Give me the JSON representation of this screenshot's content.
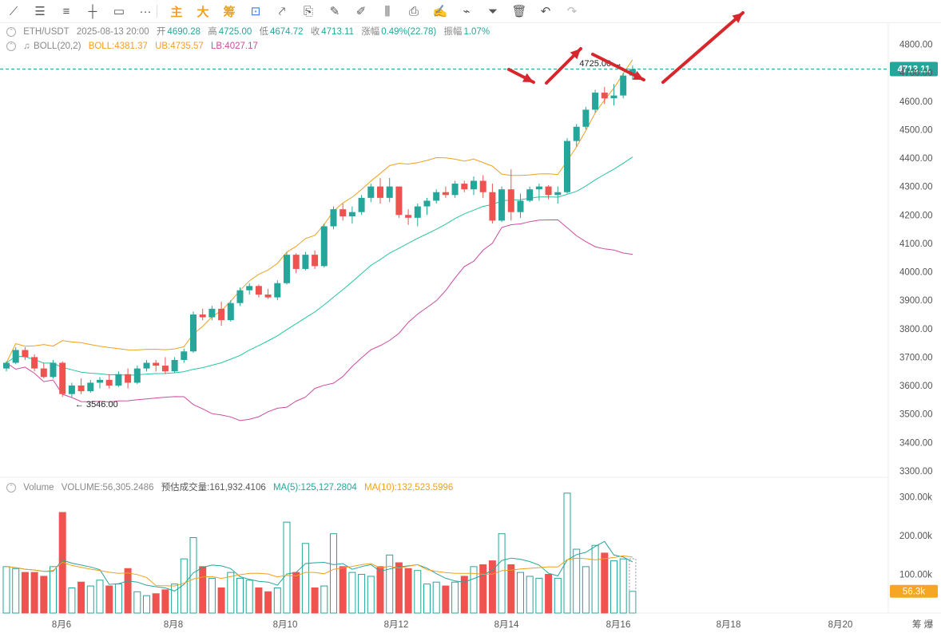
{
  "toolbar": {
    "items": [
      {
        "name": "trend-line-icon",
        "glyph": "⟋"
      },
      {
        "name": "horizontal-lines-icon",
        "glyph": "☰"
      },
      {
        "name": "parallel-lines-icon",
        "glyph": "≡"
      },
      {
        "name": "cross-line-icon",
        "glyph": "┼"
      },
      {
        "name": "rectangle-icon",
        "glyph": "▭"
      },
      {
        "name": "more-icon",
        "glyph": "···"
      }
    ],
    "cn_labels": [
      "主",
      "大",
      "筹"
    ],
    "tools": [
      {
        "name": "measure-icon",
        "glyph": "⊡"
      },
      {
        "name": "draw-path-icon",
        "glyph": "⤤"
      },
      {
        "name": "bookmark-icon",
        "glyph": "⎘"
      },
      {
        "name": "ruler-icon",
        "glyph": "✎"
      },
      {
        "name": "pen-icon",
        "glyph": "✐"
      },
      {
        "name": "candles-icon",
        "glyph": "⫼"
      },
      {
        "name": "clipboard-icon",
        "glyph": "⎙"
      },
      {
        "name": "note-icon",
        "glyph": "✍"
      },
      {
        "name": "magnet-icon",
        "glyph": "⌁"
      },
      {
        "name": "filter-icon",
        "glyph": "⏷"
      },
      {
        "name": "trash-icon",
        "glyph": "🗑"
      },
      {
        "name": "undo-icon",
        "glyph": "↶"
      },
      {
        "name": "redo-icon",
        "glyph": "↷"
      }
    ]
  },
  "info": {
    "symbol": "ETH/USDT",
    "datetime": "2025-08-13 20:00",
    "open_label": "开",
    "open": "4690.28",
    "high_label": "高",
    "high": "4725.00",
    "low_label": "低",
    "low": "4674.72",
    "close_label": "收",
    "close": "4713.11",
    "change_label": "涨幅",
    "change": "0.49%(22.78)",
    "amp_label": "振幅",
    "amp": "1.07%"
  },
  "boll": {
    "label": "BOLL(20,2)",
    "mid_label": "BOLL:",
    "mid": "4381.37",
    "ub_label": "UB:",
    "ub": "4735.57",
    "lb_label": "LB:",
    "lb": "4027.17"
  },
  "volume": {
    "label": "Volume",
    "vol_label": "VOLUME:",
    "vol": "56,305.2486",
    "est_label": "预估成交量:",
    "est": "161,932.4106",
    "ma5_label": "MA(5):",
    "ma5": "125,127.2804",
    "ma10_label": "MA(10):",
    "ma10": "132,523.5996"
  },
  "colors": {
    "up": "#26a69a",
    "down": "#ef5350",
    "ub": "#f0a020",
    "mid": "#26c6a0",
    "lb": "#d04aa0",
    "annot": "#d9262c"
  },
  "chart_data": {
    "type": "candlestick",
    "price_ticks": [
      "4800.00",
      "4700.00",
      "4600.00",
      "4500.00",
      "4400.00",
      "4300.00",
      "4200.00",
      "4100.00",
      "4000.00",
      "3900.00",
      "3800.00",
      "3700.00",
      "3600.00",
      "3500.00",
      "3400.00",
      "3300.00"
    ],
    "volume_ticks": [
      "300.00k",
      "200.00k",
      "100.00k"
    ],
    "x_ticks": [
      "8月6",
      "8月8",
      "8月10",
      "8月12",
      "8月14",
      "8月16",
      "8月18",
      "8月20"
    ],
    "current_price": "4713.11",
    "current_volume": "56.3k",
    "high_marker": "4725.00 →",
    "low_marker": "← 3546.00",
    "axis_corner": "筹 爆",
    "candles": [
      [
        3660,
        3685,
        3650,
        3680,
        120
      ],
      [
        3680,
        3735,
        3675,
        3725,
        115
      ],
      [
        3725,
        3735,
        3690,
        3700,
        105
      ],
      [
        3700,
        3710,
        3650,
        3660,
        105
      ],
      [
        3660,
        3680,
        3625,
        3630,
        95
      ],
      [
        3630,
        3690,
        3625,
        3680,
        120
      ],
      [
        3680,
        3685,
        3560,
        3570,
        260
      ],
      [
        3570,
        3610,
        3560,
        3600,
        65
      ],
      [
        3600,
        3625,
        3570,
        3580,
        80
      ],
      [
        3580,
        3620,
        3575,
        3610,
        70
      ],
      [
        3610,
        3630,
        3590,
        3620,
        85
      ],
      [
        3620,
        3640,
        3590,
        3600,
        70
      ],
      [
        3600,
        3650,
        3595,
        3640,
        75
      ],
      [
        3640,
        3660,
        3590,
        3610,
        115
      ],
      [
        3610,
        3670,
        3605,
        3660,
        55
      ],
      [
        3660,
        3690,
        3650,
        3680,
        45
      ],
      [
        3680,
        3690,
        3650,
        3670,
        50
      ],
      [
        3670,
        3700,
        3640,
        3650,
        60
      ],
      [
        3650,
        3700,
        3645,
        3690,
        75
      ],
      [
        3690,
        3730,
        3680,
        3720,
        140
      ],
      [
        3720,
        3860,
        3715,
        3850,
        195
      ],
      [
        3850,
        3870,
        3830,
        3840,
        120
      ],
      [
        3840,
        3880,
        3830,
        3870,
        90
      ],
      [
        3870,
        3895,
        3810,
        3830,
        65
      ],
      [
        3830,
        3900,
        3825,
        3890,
        105
      ],
      [
        3890,
        3945,
        3880,
        3935,
        90
      ],
      [
        3935,
        3960,
        3920,
        3950,
        85
      ],
      [
        3950,
        3955,
        3910,
        3920,
        65
      ],
      [
        3920,
        3940,
        3905,
        3910,
        55
      ],
      [
        3910,
        3970,
        3900,
        3960,
        65
      ],
      [
        3960,
        4070,
        3955,
        4060,
        235
      ],
      [
        4060,
        4065,
        3995,
        4010,
        105
      ],
      [
        4010,
        4070,
        4005,
        4060,
        180
      ],
      [
        4060,
        4075,
        4010,
        4020,
        65
      ],
      [
        4020,
        4170,
        4015,
        4160,
        70
      ],
      [
        4160,
        4230,
        4150,
        4220,
        205
      ],
      [
        4220,
        4240,
        4180,
        4195,
        120
      ],
      [
        4195,
        4230,
        4170,
        4210,
        105
      ],
      [
        4210,
        4270,
        4200,
        4260,
        100
      ],
      [
        4260,
        4310,
        4245,
        4300,
        95
      ],
      [
        4300,
        4330,
        4240,
        4260,
        120
      ],
      [
        4260,
        4330,
        4245,
        4300,
        150
      ],
      [
        4300,
        4290,
        4190,
        4200,
        130
      ],
      [
        4200,
        4220,
        4165,
        4190,
        115
      ],
      [
        4190,
        4240,
        4160,
        4230,
        110
      ],
      [
        4230,
        4260,
        4200,
        4250,
        75
      ],
      [
        4250,
        4290,
        4240,
        4280,
        80
      ],
      [
        4280,
        4300,
        4260,
        4270,
        70
      ],
      [
        4270,
        4320,
        4260,
        4310,
        80
      ],
      [
        4310,
        4320,
        4280,
        4290,
        95
      ],
      [
        4290,
        4335,
        4270,
        4320,
        120
      ],
      [
        4320,
        4340,
        4260,
        4280,
        125
      ],
      [
        4280,
        4310,
        4170,
        4180,
        135
      ],
      [
        4180,
        4300,
        4175,
        4290,
        205
      ],
      [
        4290,
        4360,
        4180,
        4210,
        125
      ],
      [
        4210,
        4275,
        4190,
        4250,
        105
      ],
      [
        4250,
        4300,
        4245,
        4290,
        95
      ],
      [
        4290,
        4310,
        4250,
        4300,
        90
      ],
      [
        4300,
        4305,
        4255,
        4270,
        100
      ],
      [
        4270,
        4300,
        4240,
        4280,
        90
      ],
      [
        4280,
        4470,
        4275,
        4460,
        310
      ],
      [
        4460,
        4520,
        4440,
        4510,
        165
      ],
      [
        4510,
        4580,
        4500,
        4570,
        120
      ],
      [
        4570,
        4640,
        4560,
        4630,
        175
      ],
      [
        4630,
        4650,
        4590,
        4610,
        155
      ],
      [
        4610,
        4660,
        4585,
        4620,
        135
      ],
      [
        4620,
        4700,
        4610,
        4690,
        140
      ],
      [
        4690,
        4725,
        4675,
        4713,
        56
      ]
    ]
  }
}
